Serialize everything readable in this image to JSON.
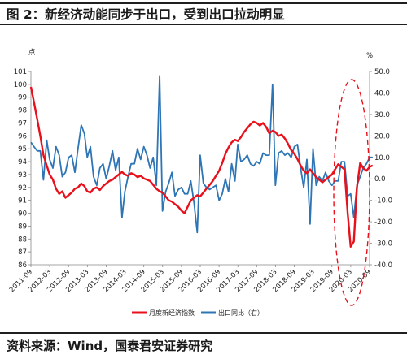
{
  "figure": {
    "title": "图 2：新经济动能同步于出口，受到出口拉动明显",
    "source": "资料来源：Wind，国泰君安证券研究"
  },
  "chart_data": {
    "type": "line",
    "left_unit": "点",
    "right_unit": "%",
    "x_tick_labels": [
      "2011-09",
      "2012-03",
      "2012-09",
      "2013-03",
      "2013-09",
      "2014-03",
      "2014-09",
      "2015-03",
      "2015-09",
      "2016-03",
      "2016-09",
      "2017-03",
      "2017-09",
      "2018-03",
      "2018-09",
      "2019-03",
      "2019-09",
      "2020-03",
      "2020-09"
    ],
    "y_left": {
      "min": 86,
      "max": 101,
      "ticks": [
        86,
        87,
        88,
        89,
        90,
        91,
        92,
        93,
        94,
        95,
        96,
        97,
        98,
        99,
        100,
        101
      ]
    },
    "y_right": {
      "min": -40,
      "max": 50,
      "ticks": [
        -40,
        -30,
        -20,
        -10,
        0,
        10,
        20,
        30,
        40,
        50
      ],
      "tick_labels": [
        "-40.0",
        "-30.0",
        "-20.0",
        "-10.0",
        "0.0",
        "10.0",
        "20.0",
        "30.0",
        "40.0",
        "50.0"
      ]
    },
    "series": [
      {
        "name": "月度新经济指数",
        "axis": "left",
        "color": "#e8101b",
        "points": [
          [
            "2011-09",
            99.8
          ],
          [
            "2011-10",
            98.6
          ],
          [
            "2011-11",
            97.3
          ],
          [
            "2011-12",
            96.0
          ],
          [
            "2012-01",
            94.5
          ],
          [
            "2012-02",
            93.7
          ],
          [
            "2012-03",
            93.0
          ],
          [
            "2012-04",
            92.6
          ],
          [
            "2012-05",
            91.9
          ],
          [
            "2012-06",
            91.5
          ],
          [
            "2012-07",
            91.7
          ],
          [
            "2012-08",
            91.2
          ],
          [
            "2012-09",
            91.4
          ],
          [
            "2012-10",
            91.6
          ],
          [
            "2012-11",
            91.9
          ],
          [
            "2012-12",
            92.0
          ],
          [
            "2013-01",
            92.3
          ],
          [
            "2013-02",
            92.1
          ],
          [
            "2013-03",
            91.7
          ],
          [
            "2013-04",
            91.6
          ],
          [
            "2013-05",
            91.9
          ],
          [
            "2013-06",
            92.0
          ],
          [
            "2013-07",
            91.8
          ],
          [
            "2013-08",
            92.1
          ],
          [
            "2013-09",
            92.3
          ],
          [
            "2013-10",
            92.5
          ],
          [
            "2013-11",
            92.6
          ],
          [
            "2013-12",
            92.8
          ],
          [
            "2014-01",
            93.0
          ],
          [
            "2014-02",
            93.2
          ],
          [
            "2014-03",
            93.0
          ],
          [
            "2014-04",
            92.9
          ],
          [
            "2014-05",
            93.1
          ],
          [
            "2014-06",
            93.0
          ],
          [
            "2014-07",
            92.8
          ],
          [
            "2014-08",
            92.9
          ],
          [
            "2014-09",
            92.7
          ],
          [
            "2014-10",
            92.6
          ],
          [
            "2014-11",
            92.5
          ],
          [
            "2014-12",
            92.2
          ],
          [
            "2015-01",
            91.9
          ],
          [
            "2015-02",
            91.7
          ],
          [
            "2015-03",
            91.6
          ],
          [
            "2015-04",
            91.3
          ],
          [
            "2015-05",
            91.0
          ],
          [
            "2015-06",
            90.9
          ],
          [
            "2015-07",
            90.7
          ],
          [
            "2015-08",
            90.5
          ],
          [
            "2015-09",
            90.2
          ],
          [
            "2015-10",
            90.0
          ],
          [
            "2015-11",
            90.5
          ],
          [
            "2015-12",
            91.0
          ],
          [
            "2016-01",
            91.2
          ],
          [
            "2016-02",
            91.4
          ],
          [
            "2016-03",
            91.3
          ],
          [
            "2016-04",
            91.6
          ],
          [
            "2016-05",
            91.9
          ],
          [
            "2016-06",
            92.2
          ],
          [
            "2016-07",
            92.5
          ],
          [
            "2016-08",
            92.9
          ],
          [
            "2016-09",
            93.3
          ],
          [
            "2016-10",
            93.9
          ],
          [
            "2016-11",
            94.6
          ],
          [
            "2016-12",
            95.1
          ],
          [
            "2017-01",
            95.5
          ],
          [
            "2017-02",
            95.7
          ],
          [
            "2017-03",
            95.6
          ],
          [
            "2017-04",
            95.9
          ],
          [
            "2017-05",
            96.3
          ],
          [
            "2017-06",
            96.6
          ],
          [
            "2017-07",
            96.9
          ],
          [
            "2017-08",
            97.1
          ],
          [
            "2017-09",
            97.0
          ],
          [
            "2017-10",
            96.8
          ],
          [
            "2017-11",
            97.0
          ],
          [
            "2017-12",
            96.7
          ],
          [
            "2018-01",
            96.2
          ],
          [
            "2018-02",
            96.4
          ],
          [
            "2018-03",
            96.3
          ],
          [
            "2018-04",
            96.0
          ],
          [
            "2018-05",
            96.1
          ],
          [
            "2018-06",
            95.8
          ],
          [
            "2018-07",
            95.4
          ],
          [
            "2018-08",
            94.9
          ],
          [
            "2018-09",
            94.6
          ],
          [
            "2018-10",
            94.2
          ],
          [
            "2018-11",
            93.7
          ],
          [
            "2018-12",
            93.3
          ],
          [
            "2019-01",
            93.1
          ],
          [
            "2019-02",
            93.4
          ],
          [
            "2019-03",
            93.1
          ],
          [
            "2019-04",
            92.8
          ],
          [
            "2019-05",
            92.6
          ],
          [
            "2019-06",
            92.4
          ],
          [
            "2019-07",
            92.6
          ],
          [
            "2019-08",
            92.8
          ],
          [
            "2019-09",
            93.0
          ],
          [
            "2019-10",
            93.4
          ],
          [
            "2019-11",
            93.8
          ],
          [
            "2019-12",
            93.6
          ],
          [
            "2020-01",
            93.4
          ],
          [
            "2020-02",
            90.0
          ],
          [
            "2020-03",
            87.4
          ],
          [
            "2020-04",
            87.8
          ],
          [
            "2020-05",
            92.0
          ],
          [
            "2020-06",
            93.9
          ],
          [
            "2020-07",
            93.5
          ],
          [
            "2020-08",
            93.3
          ],
          [
            "2020-09",
            93.6
          ],
          [
            "2020-10",
            93.7
          ]
        ]
      },
      {
        "name": "出口同比（右）",
        "axis": "right",
        "color": "#2e75b6",
        "points": [
          [
            "2011-09",
            17
          ],
          [
            "2011-10",
            15
          ],
          [
            "2011-11",
            13
          ],
          [
            "2011-12",
            13
          ],
          [
            "2012-01",
            -0.5
          ],
          [
            "2012-02",
            18
          ],
          [
            "2012-03",
            9
          ],
          [
            "2012-04",
            5
          ],
          [
            "2012-05",
            15
          ],
          [
            "2012-06",
            11
          ],
          [
            "2012-07",
            1
          ],
          [
            "2012-08",
            3
          ],
          [
            "2012-09",
            10
          ],
          [
            "2012-10",
            11
          ],
          [
            "2012-11",
            3
          ],
          [
            "2012-12",
            14
          ],
          [
            "2013-01",
            25
          ],
          [
            "2013-02",
            21
          ],
          [
            "2013-03",
            10
          ],
          [
            "2013-04",
            15
          ],
          [
            "2013-05",
            1
          ],
          [
            "2013-06",
            -3
          ],
          [
            "2013-07",
            5
          ],
          [
            "2013-08",
            7
          ],
          [
            "2013-09",
            0
          ],
          [
            "2013-10",
            6
          ],
          [
            "2013-11",
            13
          ],
          [
            "2013-12",
            4
          ],
          [
            "2014-01",
            10
          ],
          [
            "2014-02",
            -18
          ],
          [
            "2014-03",
            -6
          ],
          [
            "2014-04",
            1
          ],
          [
            "2014-05",
            7
          ],
          [
            "2014-06",
            7
          ],
          [
            "2014-07",
            14
          ],
          [
            "2014-08",
            9
          ],
          [
            "2014-09",
            15
          ],
          [
            "2014-10",
            11
          ],
          [
            "2014-11",
            5
          ],
          [
            "2014-12",
            10
          ],
          [
            "2015-01",
            -3
          ],
          [
            "2015-02",
            48
          ],
          [
            "2015-03",
            -15
          ],
          [
            "2015-04",
            -6
          ],
          [
            "2015-05",
            -2
          ],
          [
            "2015-06",
            3
          ],
          [
            "2015-07",
            -8
          ],
          [
            "2015-08",
            -5
          ],
          [
            "2015-09",
            -4
          ],
          [
            "2015-10",
            -7
          ],
          [
            "2015-11",
            -7
          ],
          [
            "2015-12",
            -1
          ],
          [
            "2016-01",
            -11
          ],
          [
            "2016-02",
            -25
          ],
          [
            "2016-03",
            11
          ],
          [
            "2016-04",
            -2
          ],
          [
            "2016-05",
            -4
          ],
          [
            "2016-06",
            -5
          ],
          [
            "2016-07",
            -4
          ],
          [
            "2016-08",
            -3
          ],
          [
            "2016-09",
            -10
          ],
          [
            "2016-10",
            -7
          ],
          [
            "2016-11",
            0
          ],
          [
            "2016-12",
            -6
          ],
          [
            "2017-01",
            7
          ],
          [
            "2017-02",
            -1
          ],
          [
            "2017-03",
            16
          ],
          [
            "2017-04",
            8
          ],
          [
            "2017-05",
            9
          ],
          [
            "2017-06",
            11
          ],
          [
            "2017-07",
            7
          ],
          [
            "2017-08",
            6
          ],
          [
            "2017-09",
            8
          ],
          [
            "2017-10",
            7
          ],
          [
            "2017-11",
            12
          ],
          [
            "2017-12",
            11
          ],
          [
            "2018-01",
            11
          ],
          [
            "2018-02",
            44
          ],
          [
            "2018-03",
            -3
          ],
          [
            "2018-04",
            12
          ],
          [
            "2018-05",
            13
          ],
          [
            "2018-06",
            11
          ],
          [
            "2018-07",
            12
          ],
          [
            "2018-08",
            10
          ],
          [
            "2018-09",
            15
          ],
          [
            "2018-10",
            16
          ],
          [
            "2018-11",
            5
          ],
          [
            "2018-12",
            -4
          ],
          [
            "2019-01",
            9
          ],
          [
            "2019-02",
            -21
          ],
          [
            "2019-03",
            14
          ],
          [
            "2019-04",
            -3
          ],
          [
            "2019-05",
            1
          ],
          [
            "2019-06",
            -1
          ],
          [
            "2019-07",
            3
          ],
          [
            "2019-08",
            -1
          ],
          [
            "2019-09",
            -3
          ],
          [
            "2019-10",
            -1
          ],
          [
            "2019-11",
            -1
          ],
          [
            "2019-12",
            8
          ],
          [
            "2020-01",
            8
          ],
          [
            "2020-02",
            -8
          ],
          [
            "2020-03",
            -7
          ],
          [
            "2020-04",
            -18
          ],
          [
            "2020-05",
            -3
          ],
          [
            "2020-06",
            1
          ],
          [
            "2020-07",
            5
          ],
          [
            "2020-08",
            7
          ],
          [
            "2020-09",
            10
          ],
          [
            "2020-10",
            10
          ]
        ]
      }
    ],
    "annotation": "dashed red ellipse highlighting 2020 (2020-03 to 2020-09)",
    "legend_position": "bottom-center",
    "grid": false
  }
}
